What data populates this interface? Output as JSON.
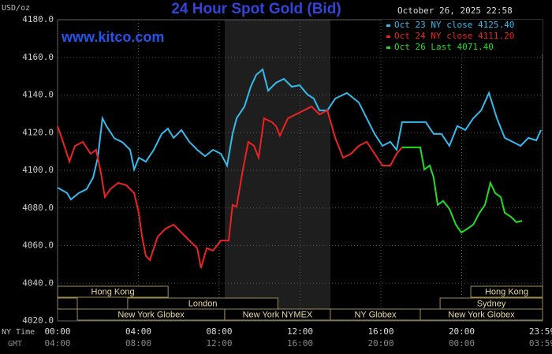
{
  "chart_data": {
    "type": "line",
    "title": "24 Hour Spot Gold (Bid)",
    "watermark": "www.kitco.com",
    "date": "October 26, 2025 22:58",
    "y_label": "USD/oz",
    "x_label": "NY Time",
    "x2_label": "GMT",
    "xlim": [
      0,
      24
    ],
    "xticks": [
      {
        "value": 0,
        "label": "00:00"
      },
      {
        "value": 4,
        "label": "04:00"
      },
      {
        "value": 8,
        "label": "08:00"
      },
      {
        "value": 12,
        "label": "12:00"
      },
      {
        "value": 16,
        "label": "16:00"
      },
      {
        "value": 20,
        "label": "20:00"
      },
      {
        "value": 23.98,
        "label": "23:59"
      }
    ],
    "x2tick_labels": [
      "04:00",
      "08:00",
      "12:00",
      "16:00",
      "20:00",
      "00:00",
      "03:59"
    ],
    "ylim": [
      4020,
      4180
    ],
    "yticks": [
      {
        "value": 4020,
        "label": "4020.0"
      },
      {
        "value": 4040,
        "label": "4040.0"
      },
      {
        "value": 4060,
        "label": "4060.0"
      },
      {
        "value": 4080,
        "label": "4080.0"
      },
      {
        "value": 4100,
        "label": "4100.0"
      },
      {
        "value": 4120,
        "label": "4120.0"
      },
      {
        "value": 4140,
        "label": "4140.0"
      },
      {
        "value": 4160,
        "label": "4160.0"
      },
      {
        "value": 4180,
        "label": "4180.0"
      }
    ],
    "grid": true,
    "legend": "top-right",
    "sessions": [
      {
        "label": "Hong Kong",
        "row": 1,
        "start": 0,
        "end": 5.47
      },
      {
        "label": "Hong Kong",
        "row": 1,
        "start": 20.45,
        "end": 24
      },
      {
        "label": "London",
        "row": 2,
        "start": 3.47,
        "end": 10.9
      },
      {
        "label": "Sydney",
        "row": 2,
        "start": 18.93,
        "end": 24
      },
      {
        "label": "New York Globex",
        "row": 3,
        "start": 0.98,
        "end": 8.27
      },
      {
        "label": "New York NYMEX",
        "row": 3,
        "start": 8.27,
        "end": 13.5,
        "shaded": true
      },
      {
        "label": "NY Globex",
        "row": 3,
        "start": 13.5,
        "end": 17.95
      },
      {
        "label": "New York Globex",
        "row": 3,
        "start": 17.95,
        "end": 24
      }
    ],
    "series": [
      {
        "name": "Oct 23 NY close 4125.40",
        "color": "#33bbee",
        "x": [
          0,
          0.47,
          0.66,
          1.05,
          1.44,
          1.76,
          1.99,
          2.22,
          2.42,
          2.81,
          3.2,
          3.59,
          3.79,
          4.02,
          4.37,
          4.76,
          5.15,
          5.46,
          5.74,
          6.13,
          6.52,
          6.91,
          7.3,
          7.69,
          8.08,
          8.39,
          8.66,
          8.86,
          9.25,
          9.56,
          9.83,
          10.15,
          10.42,
          10.81,
          11.2,
          11.59,
          11.98,
          12.37,
          12.68,
          12.96,
          13.35,
          13.74,
          14.32,
          14.91,
          15.3,
          15.69,
          16.08,
          16.47,
          16.78,
          17.05,
          18.22,
          18.61,
          19.0,
          19.39,
          19.78,
          20.18,
          20.57,
          20.96,
          21.35,
          21.74,
          22.13,
          22.52,
          22.91,
          23.3,
          23.69,
          23.92
        ],
        "values": [
          4090.8,
          4088,
          4084.5,
          4087.9,
          4090,
          4096.2,
          4106.7,
          4127.6,
          4123.5,
          4117,
          4115,
          4110.9,
          4100.4,
          4106.7,
          4104.6,
          4110.9,
          4119.3,
          4122.2,
          4117.2,
          4121.4,
          4115.1,
          4110.9,
          4107.5,
          4110.9,
          4108.8,
          4102.5,
          4119.3,
          4127.6,
          4133.9,
          4144.4,
          4150.7,
          4153.6,
          4142.3,
          4146.5,
          4148.6,
          4144.4,
          4145.2,
          4140.2,
          4138.1,
          4131.8,
          4131.8,
          4138.1,
          4141.1,
          4136,
          4127.6,
          4119.3,
          4113,
          4115.1,
          4110.9,
          4125.6,
          4125.6,
          4119.3,
          4119.3,
          4113,
          4123.5,
          4121.4,
          4127.6,
          4131.8,
          4141.1,
          4127.6,
          4117.2,
          4115.1,
          4113,
          4117.2,
          4115.9,
          4121.4
        ]
      },
      {
        "name": "Oct 24 NY close 4111.20",
        "color": "#ee2222",
        "x": [
          0,
          0.27,
          0.59,
          0.86,
          1.25,
          1.64,
          1.91,
          2.15,
          2.34,
          2.61,
          3.0,
          3.4,
          3.79,
          4.02,
          4.18,
          4.37,
          4.57,
          4.76,
          4.96,
          5.35,
          5.74,
          6.13,
          6.52,
          6.91,
          7.1,
          7.38,
          7.69,
          8.08,
          8.47,
          8.66,
          8.86,
          9.17,
          9.44,
          9.72,
          9.95,
          10.22,
          10.61,
          10.81,
          11.0,
          11.4,
          11.79,
          12.18,
          12.57,
          12.96,
          13.35,
          13.74,
          14.13,
          14.52,
          14.91,
          15.3,
          15.69,
          16.08,
          16.47,
          16.78,
          17.05
        ],
        "values": [
          4123.5,
          4115.1,
          4104.6,
          4112.9,
          4115.1,
          4108.8,
          4110.9,
          4098.3,
          4085.8,
          4090,
          4093.3,
          4092.1,
          4087.9,
          4077.4,
          4064.8,
          4054.4,
          4052.3,
          4058.6,
          4064.8,
          4069,
          4071.1,
          4066.9,
          4062.7,
          4058.6,
          4048.1,
          4058.6,
          4057.3,
          4062.7,
          4062.7,
          4081.6,
          4080.7,
          4100.4,
          4115.1,
          4113,
          4106.7,
          4127.6,
          4125.6,
          4123.5,
          4118.4,
          4127.6,
          4129.7,
          4131.8,
          4133.9,
          4129.7,
          4131.8,
          4117.2,
          4106.7,
          4108.8,
          4113,
          4115.1,
          4108.8,
          4102.5,
          4102.5,
          4108.8,
          4112.2
        ]
      },
      {
        "name": "Oct 26 Last 4071.40",
        "color": "#22dd22",
        "x": [
          17.05,
          17.95,
          18.15,
          18.42,
          18.61,
          18.81,
          19.08,
          19.39,
          19.71,
          19.98,
          20.29,
          20.57,
          20.88,
          21.15,
          21.42,
          21.66,
          21.93,
          22.13,
          22.44,
          22.71,
          22.99
        ],
        "values": [
          4112.2,
          4112.2,
          4100.4,
          4102.5,
          4096.2,
          4081.6,
          4083.7,
          4079.5,
          4071.1,
          4066.9,
          4069,
          4071.1,
          4077.4,
          4081.6,
          4093.3,
          4087.9,
          4085.8,
          4077.4,
          4075.3,
          4072.4,
          4073.2
        ]
      }
    ]
  }
}
